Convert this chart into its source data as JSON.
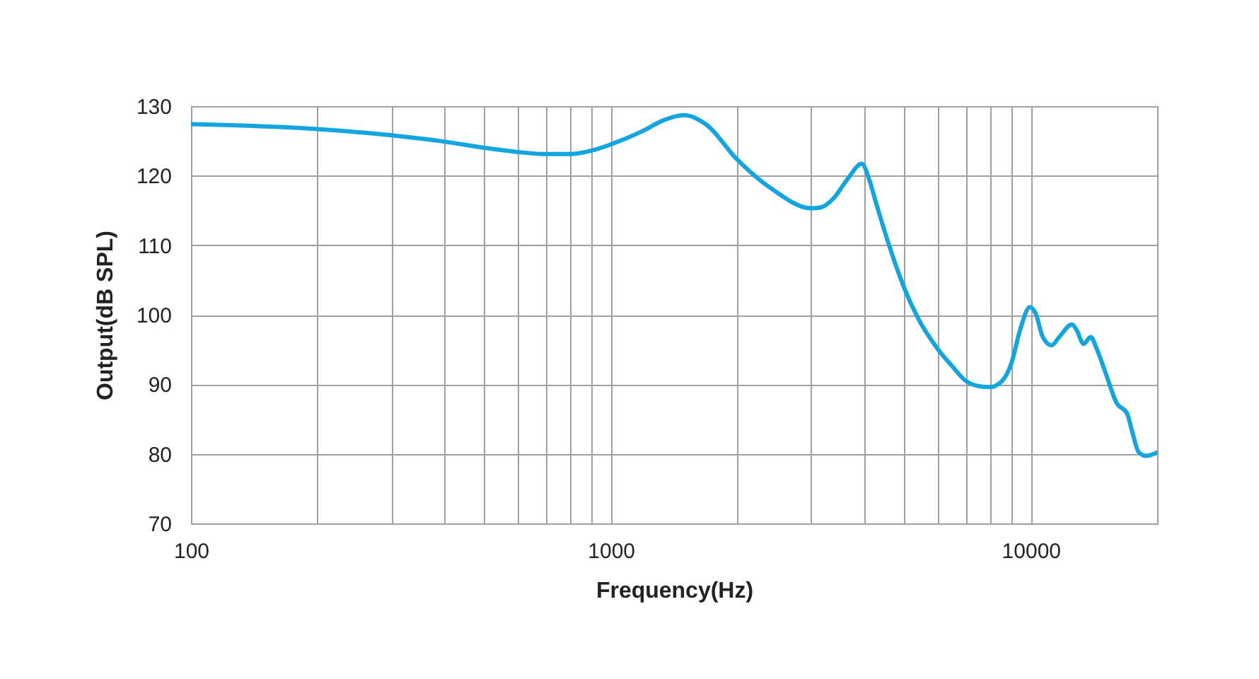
{
  "chart_data": {
    "type": "line",
    "xlabel": "Frequency(Hz)",
    "ylabel": "Output(dB SPL)",
    "x": [
      100,
      200,
      300,
      400,
      500,
      600,
      700,
      800,
      900,
      1000,
      1180,
      1340,
      1490,
      1690,
      2000,
      2430,
      3000,
      3150,
      3400,
      3660,
      3960,
      4120,
      4280,
      4520,
      4760,
      5000,
      5390,
      6000,
      6500,
      7000,
      7570,
      8000,
      8520,
      9000,
      9430,
      9950,
      10270,
      10680,
      11200,
      11690,
      12530,
      12860,
      13360,
      13890,
      14360,
      15120,
      16020,
      16960,
      17490,
      18090,
      18800,
      20000
    ],
    "series": [
      {
        "color": "#12a5e0",
        "values": [
          127.4,
          126.7,
          125.8,
          124.9,
          124.0,
          123.4,
          123.1,
          123.1,
          123.6,
          124.5,
          126.3,
          128.0,
          128.7,
          127.3,
          122.3,
          118.0,
          115.3,
          115.4,
          116.8,
          119.5,
          121.7,
          119.5,
          116.1,
          111.4,
          107.3,
          103.8,
          99.5,
          95.1,
          92.6,
          90.5,
          89.7,
          89.6,
          90.4,
          93.1,
          97.8,
          101.1,
          100.2,
          96.8,
          95.6,
          96.8,
          98.6,
          97.8,
          95.8,
          96.8,
          95.1,
          91.4,
          87.3,
          85.8,
          82.9,
          80.2,
          79.7,
          80.2
        ]
      }
    ],
    "log": "x",
    "xlim": [
      100,
      20000
    ],
    "xticks": [
      100,
      {
        "value": 200,
        "label": null
      },
      {
        "value": 300,
        "label": null
      },
      {
        "value": 400,
        "label": null
      },
      {
        "value": 500,
        "label": null
      },
      {
        "value": 600,
        "label": null
      },
      {
        "value": 700,
        "label": null
      },
      {
        "value": 800,
        "label": null
      },
      {
        "value": 900,
        "label": null
      },
      1000,
      {
        "value": 2000,
        "label": null
      },
      {
        "value": 3000,
        "label": null
      },
      {
        "value": 4000,
        "label": null
      },
      {
        "value": 5000,
        "label": null
      },
      {
        "value": 6000,
        "label": null
      },
      {
        "value": 7000,
        "label": null
      },
      {
        "value": 8000,
        "label": null
      },
      {
        "value": 9000,
        "label": null
      },
      10000
    ],
    "ylim": [
      70,
      130
    ],
    "yticks": [
      70,
      80,
      90,
      100,
      110,
      120,
      130
    ],
    "grid": true,
    "line_style": "solid"
  }
}
